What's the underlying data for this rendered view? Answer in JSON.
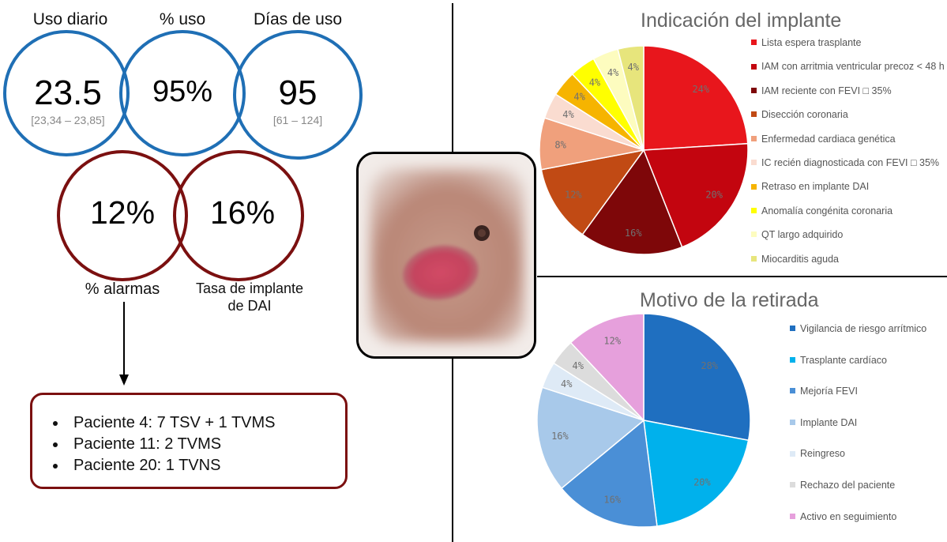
{
  "stats": {
    "daily_use": {
      "label": "Uso diario",
      "value": "23.5",
      "range": "[23,34 – 23,85]"
    },
    "pct_use": {
      "label": "% uso",
      "value": "95%"
    },
    "days_use": {
      "label": "Días de uso",
      "value": "95",
      "range": "[61 – 124]"
    },
    "alarms": {
      "label": "% alarmas",
      "value": "12%"
    },
    "icd_rate": {
      "label_line1": "Tasa de implante",
      "label_line2": "de DAI",
      "value": "16%"
    }
  },
  "alarm_details": [
    "Paciente 4: 7 TSV + 1 TVMS",
    "Paciente 11: 2 TVMS",
    "Paciente 20: 1 TVNS"
  ],
  "colors": {
    "blue_ring": "#1f6fb5",
    "red_ring": "#7b1010"
  },
  "chart_data": [
    {
      "type": "pie",
      "title": "Indicación del implante",
      "legend_position": "right",
      "slices": [
        {
          "name": "Lista espera trasplante",
          "value": 24,
          "label": "24%",
          "color": "#e8161c"
        },
        {
          "name": "IAM con arritmia ventricular precoz < 48 h",
          "value": 20,
          "label": "20%",
          "color": "#c3050f"
        },
        {
          "name": "IAM reciente con FEVI □ 35%",
          "value": 16,
          "label": "16%",
          "color": "#7e0709"
        },
        {
          "name": "Disección coronaria",
          "value": 12,
          "label": "12%",
          "color": "#c14a14"
        },
        {
          "name": "Enfermedad cardiaca genética",
          "value": 8,
          "label": "8%",
          "color": "#f0a07c"
        },
        {
          "name": "IC recién diagnosticada con FEVI □ 35%",
          "value": 4,
          "label": "4%",
          "color": "#fadcd0"
        },
        {
          "name": "Retraso en implante DAI",
          "value": 4,
          "label": "4%",
          "color": "#f6b400"
        },
        {
          "name": "Anomalía congénita coronaria",
          "value": 4,
          "label": "4%",
          "color": "#ffff00"
        },
        {
          "name": "QT largo adquirido",
          "value": 4,
          "label": "4%",
          "color": "#fdfcbf"
        },
        {
          "name": "Miocarditis aguda",
          "value": 4,
          "label": "4%",
          "color": "#e7e57c"
        }
      ]
    },
    {
      "type": "pie",
      "title": "Motivo de la retirada",
      "legend_position": "right",
      "slices": [
        {
          "name": "Vigilancia de riesgo arrítmico",
          "value": 28,
          "label": "28%",
          "color": "#1f6fc0"
        },
        {
          "name": "Trasplante cardíaco",
          "value": 20,
          "label": "20%",
          "color": "#00b1ec"
        },
        {
          "name": "Mejoría FEVI",
          "value": 16,
          "label": "16%",
          "color": "#4a8fd6"
        },
        {
          "name": "Implante DAI",
          "value": 16,
          "label": "16%",
          "color": "#a8c9ea"
        },
        {
          "name": "Reingreso",
          "value": 4,
          "label": "4%",
          "color": "#deeaf6"
        },
        {
          "name": "Rechazo del paciente",
          "value": 4,
          "label": "4%",
          "color": "#dcdcdc"
        },
        {
          "name": "Activo en seguimiento",
          "value": 12,
          "label": "12%",
          "color": "#e6a0dc"
        }
      ]
    }
  ]
}
